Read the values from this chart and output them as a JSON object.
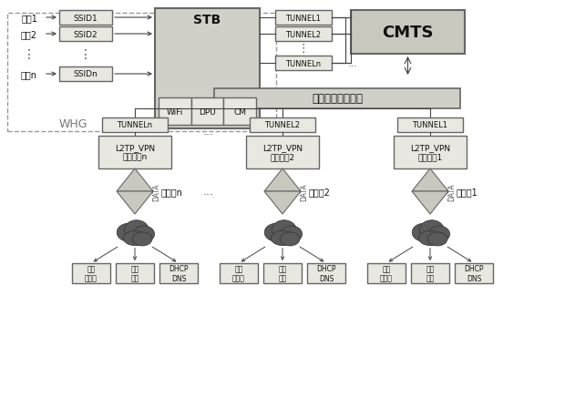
{
  "bg_color": "#ffffff",
  "box_fill": "#d8d8d0",
  "box_fill_light": "#e8e8e0",
  "box_edge": "#666666",
  "text_color": "#111111",
  "line_color": "#444444",
  "whg_label": "WHG",
  "cmts_label": "CMTS",
  "stb_label": "STB",
  "switch_label": "城域网核心交换机",
  "users": [
    "用户1",
    "用户2",
    "用户n"
  ],
  "ssids": [
    "SSID1",
    "SSID2",
    "SSIDn"
  ],
  "stb_components": [
    "WiFi",
    "DPU",
    "CM"
  ],
  "tunnels_right": [
    "TUNNEL1",
    "TUNNEL2",
    "TUNNELn"
  ],
  "tunnels_bottom": [
    "TUNNELn",
    "TUNNEL2",
    "TUNNEL1"
  ],
  "vpn_labels": [
    "L2TP_VPN\n接入系统n",
    "L2TP_VPN\n接入系统2",
    "L2TP_VPN\n接入系统1"
  ],
  "operators": [
    "运营商n",
    "运营商2",
    "运营商1"
  ],
  "cloud_services": [
    [
      "视频\n服务器",
      "宽带\n出口",
      "DHCP\nDNS"
    ],
    [
      "视频\n服务器",
      "宽带\n出口",
      "DHCP\nDNS"
    ],
    [
      "视频\n服务器",
      "宽带\n出口",
      "DHCP\nDNS"
    ]
  ],
  "data_label": "DATA"
}
